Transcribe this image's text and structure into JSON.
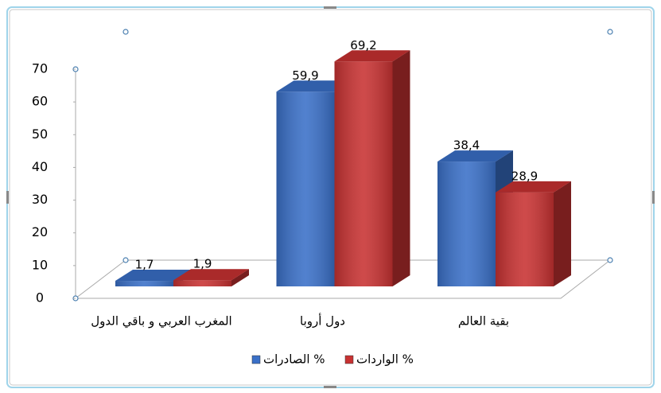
{
  "chart_data": {
    "type": "bar3d",
    "categories": [
      "المغرب العربي و باقي الدول",
      "دول أروبا",
      "بقية العالم"
    ],
    "series": [
      {
        "name": "الصادرات %",
        "color": "#3a70c8",
        "values": [
          1.7,
          59.9,
          38.4
        ],
        "value_labels": [
          "1,7",
          "59,9",
          "38,4"
        ]
      },
      {
        "name": "الواردات %",
        "color": "#c83232",
        "values": [
          1.9,
          69.2,
          28.9
        ],
        "value_labels": [
          "1,9",
          "69,2",
          "28,9"
        ]
      }
    ],
    "ylim": [
      0,
      70
    ],
    "yticks": [
      0,
      10,
      20,
      30,
      40,
      50,
      60,
      70
    ],
    "legend": "bottom"
  }
}
